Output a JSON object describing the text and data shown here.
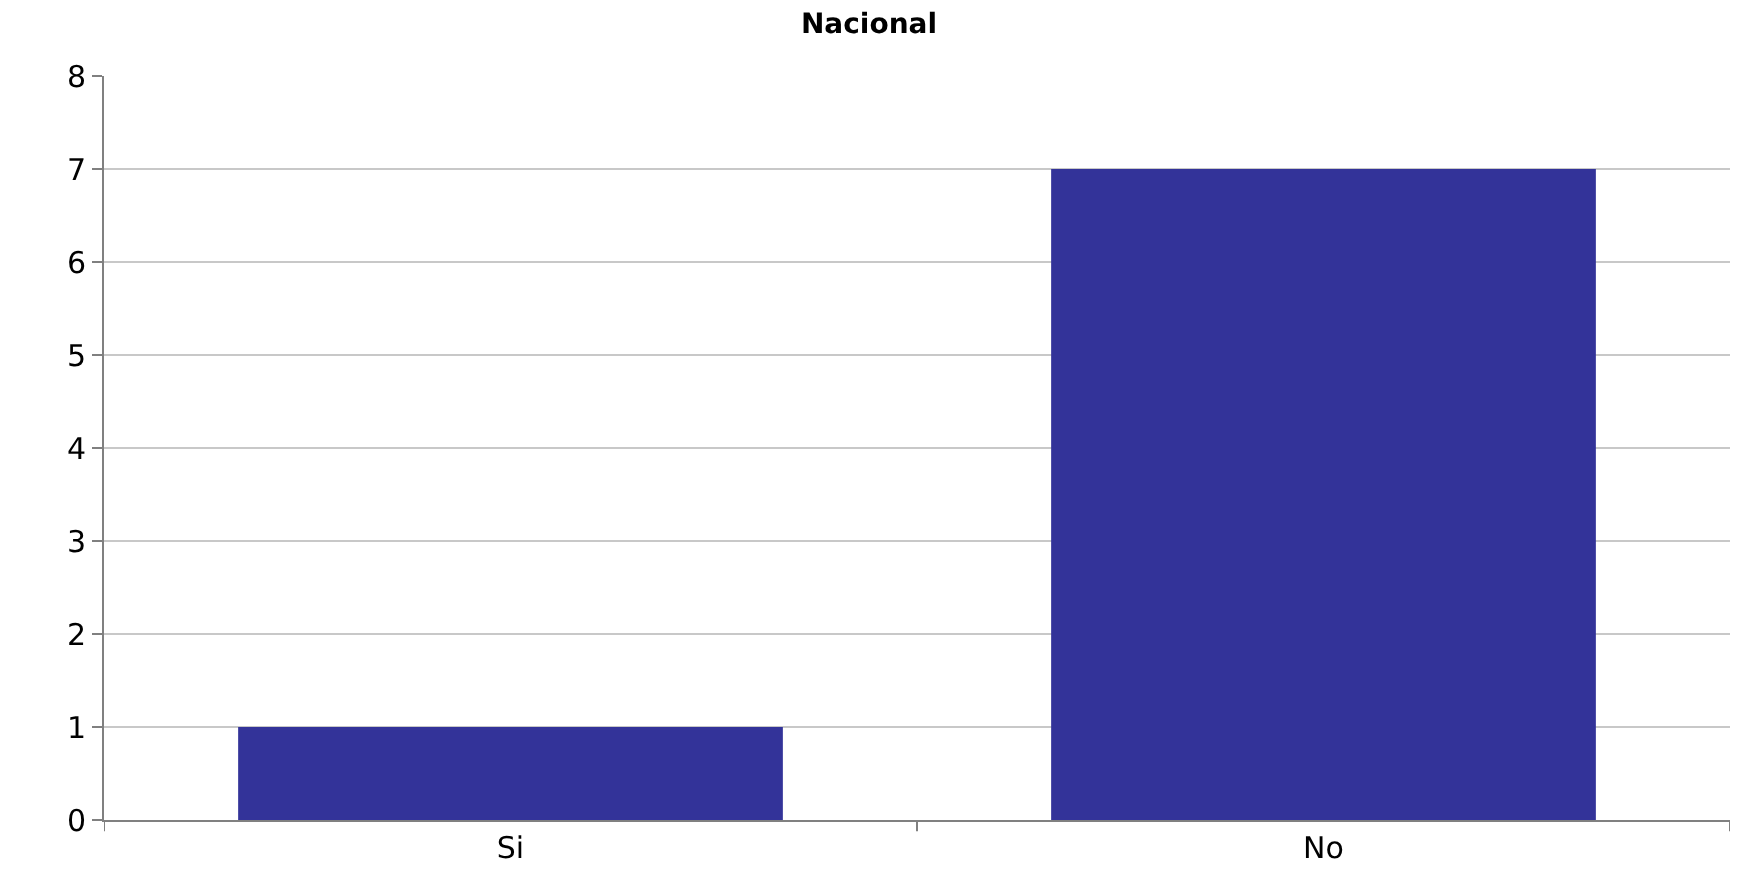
{
  "chart_data": {
    "type": "bar",
    "title": "Nacional",
    "categories": [
      "Si",
      "No"
    ],
    "values": [
      1,
      7
    ],
    "color": "#333399",
    "ylim": [
      0,
      8
    ],
    "yticks": [
      0,
      1,
      2,
      3,
      4,
      5,
      6,
      7,
      8
    ],
    "grid": "y"
  }
}
